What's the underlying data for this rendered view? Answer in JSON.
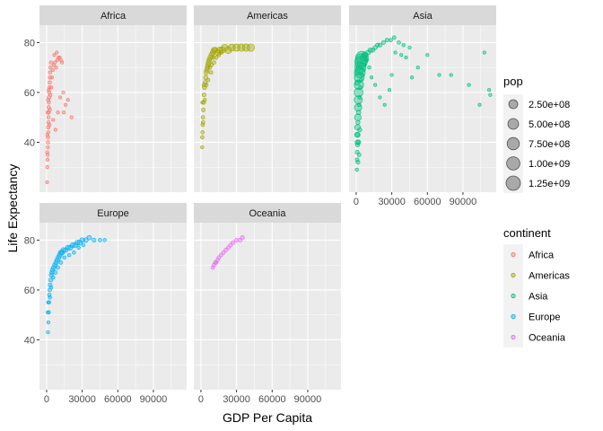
{
  "chart_data": {
    "type": "scatter",
    "facet_by": "continent",
    "xlabel": "GDP Per Capita",
    "ylabel": "Life Expectancy",
    "xlim": [
      -6000,
      118000
    ],
    "ylim": [
      20,
      87
    ],
    "x_ticks": [
      0,
      30000,
      60000,
      90000
    ],
    "x_tick_labels": [
      "0",
      "30000",
      "60000",
      "90000"
    ],
    "y_ticks": [
      40,
      60,
      80
    ],
    "y_tick_labels": [
      "40",
      "60",
      "80"
    ],
    "grid": true,
    "legend_position": "right",
    "size_legend": {
      "title": "pop",
      "values": [
        250000000,
        500000000,
        750000000,
        1000000000,
        1250000000
      ],
      "labels": [
        "2.50e+08",
        "5.00e+08",
        "7.50e+08",
        "1.00e+09",
        "1.25e+09"
      ]
    },
    "color_legend": {
      "title": "continent",
      "entries": [
        {
          "name": "Africa",
          "color": "#F8766D"
        },
        {
          "name": "Americas",
          "color": "#A3A500"
        },
        {
          "name": "Asia",
          "color": "#00BF7D"
        },
        {
          "name": "Europe",
          "color": "#00B0F6"
        },
        {
          "name": "Oceania",
          "color": "#E76BF3"
        }
      ]
    },
    "facets": [
      {
        "name": "Africa",
        "color": "#F8766D",
        "points": [
          [
            400,
            24,
            2
          ],
          [
            600,
            30,
            4
          ],
          [
            800,
            33,
            5
          ],
          [
            900,
            35,
            6
          ],
          [
            1000,
            38,
            4
          ],
          [
            1100,
            40,
            8
          ],
          [
            1200,
            42,
            6
          ],
          [
            1300,
            44,
            5
          ],
          [
            1400,
            46,
            10
          ],
          [
            1500,
            48,
            8
          ],
          [
            1600,
            50,
            6
          ],
          [
            1700,
            52,
            12
          ],
          [
            1800,
            54,
            9
          ],
          [
            1900,
            56,
            7
          ],
          [
            2000,
            58,
            14
          ],
          [
            2200,
            60,
            10
          ],
          [
            2400,
            62,
            8
          ],
          [
            2600,
            64,
            6
          ],
          [
            2800,
            66,
            5
          ],
          [
            3000,
            68,
            4
          ],
          [
            3300,
            70,
            4
          ],
          [
            3600,
            72,
            3
          ],
          [
            500,
            36,
            3
          ],
          [
            700,
            43,
            5
          ],
          [
            1000,
            52,
            9
          ],
          [
            1300,
            57,
            6
          ],
          [
            1700,
            61,
            4
          ],
          [
            2300,
            47,
            11
          ],
          [
            2700,
            53,
            7
          ],
          [
            3200,
            59,
            5
          ],
          [
            4000,
            62,
            3
          ],
          [
            4500,
            66,
            2
          ],
          [
            5200,
            69,
            2
          ],
          [
            6000,
            71,
            2
          ],
          [
            7000,
            72,
            1
          ],
          [
            8000,
            70,
            1
          ],
          [
            9000,
            73,
            1
          ],
          [
            10000,
            74,
            1
          ],
          [
            11000,
            74,
            1
          ],
          [
            12000,
            73,
            1
          ],
          [
            13000,
            72,
            1
          ],
          [
            14000,
            60,
            1
          ],
          [
            16000,
            55,
            1
          ],
          [
            18000,
            57,
            1
          ],
          [
            21000,
            50,
            1
          ],
          [
            5500,
            49,
            1
          ],
          [
            7500,
            45,
            1
          ],
          [
            9500,
            52,
            1
          ],
          [
            11500,
            58,
            1
          ],
          [
            14500,
            52,
            1
          ],
          [
            6500,
            75,
            1
          ],
          [
            8500,
            76,
            1
          ]
        ]
      },
      {
        "name": "Americas",
        "color": "#A3A500",
        "points": [
          [
            1000,
            38,
            3
          ],
          [
            1100,
            42,
            6
          ],
          [
            1300,
            44,
            8
          ],
          [
            1500,
            47,
            10
          ],
          [
            1700,
            50,
            12
          ],
          [
            2000,
            53,
            15
          ],
          [
            2300,
            56,
            18
          ],
          [
            2600,
            59,
            20
          ],
          [
            3000,
            62,
            25
          ],
          [
            3500,
            64,
            30
          ],
          [
            4000,
            66,
            35
          ],
          [
            4500,
            68,
            40
          ],
          [
            5000,
            69,
            45
          ],
          [
            5500,
            70,
            50
          ],
          [
            6000,
            71,
            55
          ],
          [
            6500,
            72,
            60
          ],
          [
            7000,
            73,
            65
          ],
          [
            8000,
            74,
            70
          ],
          [
            9000,
            75,
            80
          ],
          [
            10000,
            76,
            90
          ],
          [
            11000,
            77,
            100
          ],
          [
            12000,
            77,
            110
          ],
          [
            14000,
            76,
            130
          ],
          [
            16000,
            77,
            160
          ],
          [
            18000,
            77,
            180
          ],
          [
            20000,
            78,
            200
          ],
          [
            23000,
            77,
            220
          ],
          [
            26000,
            78,
            250
          ],
          [
            30000,
            78,
            270
          ],
          [
            34000,
            78,
            290
          ],
          [
            38000,
            78,
            300
          ],
          [
            42000,
            78,
            310
          ],
          [
            1200,
            56,
            4
          ],
          [
            1800,
            48,
            9
          ],
          [
            2500,
            63,
            11
          ],
          [
            3200,
            57,
            7
          ],
          [
            4500,
            63,
            9
          ],
          [
            6000,
            65,
            10
          ],
          [
            7500,
            70,
            12
          ],
          [
            9000,
            71,
            11
          ],
          [
            11000,
            72,
            10
          ],
          [
            13000,
            74,
            9
          ],
          [
            15000,
            75,
            12
          ],
          [
            17000,
            76,
            14
          ],
          [
            8500,
            68,
            10
          ],
          [
            10500,
            74,
            8
          ]
        ]
      },
      {
        "name": "Asia",
        "color": "#00BF7D",
        "points": [
          [
            600,
            29,
            8
          ],
          [
            800,
            33,
            15
          ],
          [
            900,
            36,
            20
          ],
          [
            1000,
            40,
            50
          ],
          [
            1100,
            43,
            80
          ],
          [
            1200,
            46,
            120
          ],
          [
            1400,
            50,
            200
          ],
          [
            1600,
            54,
            300
          ],
          [
            1800,
            57,
            400
          ],
          [
            2000,
            60,
            500
          ],
          [
            2300,
            63,
            600
          ],
          [
            2600,
            66,
            700
          ],
          [
            3000,
            68,
            900
          ],
          [
            3500,
            70,
            1000
          ],
          [
            4000,
            72,
            1200
          ],
          [
            4500,
            73,
            1300
          ],
          [
            5000,
            74,
            1300
          ],
          [
            6000,
            74,
            150
          ],
          [
            7000,
            75,
            80
          ],
          [
            8000,
            75,
            60
          ],
          [
            10000,
            76,
            50
          ],
          [
            12000,
            77,
            40
          ],
          [
            14000,
            77,
            30
          ],
          [
            16000,
            78,
            25
          ],
          [
            18000,
            79,
            20
          ],
          [
            20000,
            79,
            20
          ],
          [
            23000,
            80,
            15
          ],
          [
            26000,
            81,
            15
          ],
          [
            29000,
            81,
            10
          ],
          [
            32000,
            82,
            10
          ],
          [
            36000,
            80,
            8
          ],
          [
            40000,
            79,
            5
          ],
          [
            45000,
            78,
            5
          ],
          [
            800,
            43,
            60
          ],
          [
            1200,
            39,
            30
          ],
          [
            1500,
            48,
            25
          ],
          [
            2000,
            52,
            40
          ],
          [
            2500,
            55,
            15
          ],
          [
            3000,
            58,
            12
          ],
          [
            3500,
            62,
            10
          ],
          [
            4000,
            65,
            8
          ],
          [
            5000,
            67,
            6
          ],
          [
            6000,
            69,
            5
          ],
          [
            7000,
            71,
            4
          ],
          [
            9000,
            73,
            4
          ],
          [
            11000,
            70,
            3
          ],
          [
            13000,
            66,
            2
          ],
          [
            16000,
            63,
            2
          ],
          [
            20000,
            58,
            2
          ],
          [
            24000,
            55,
            2
          ],
          [
            28000,
            61,
            2
          ],
          [
            30000,
            67,
            2
          ],
          [
            33000,
            76,
            2
          ],
          [
            38000,
            75,
            2
          ],
          [
            42000,
            74,
            2
          ],
          [
            47000,
            66,
            1
          ],
          [
            52000,
            70,
            1
          ],
          [
            60000,
            75,
            1
          ],
          [
            70000,
            67,
            1
          ],
          [
            80000,
            67,
            1
          ],
          [
            95000,
            63,
            1
          ],
          [
            108000,
            76,
            1
          ],
          [
            112000,
            61,
            1
          ],
          [
            104000,
            55,
            1
          ],
          [
            113000,
            59,
            1
          ],
          [
            1000,
            64,
            80
          ],
          [
            1500,
            68,
            90
          ],
          [
            2500,
            70,
            100
          ],
          [
            3000,
            45,
            30
          ],
          [
            2000,
            40,
            40
          ],
          [
            1500,
            32,
            20
          ],
          [
            2500,
            35,
            15
          ]
        ]
      },
      {
        "name": "Europe",
        "color": "#00B0F6",
        "points": [
          [
            1200,
            43,
            3
          ],
          [
            1500,
            47,
            5
          ],
          [
            1800,
            51,
            6
          ],
          [
            2000,
            55,
            8
          ],
          [
            2300,
            58,
            10
          ],
          [
            2600,
            60,
            12
          ],
          [
            3000,
            62,
            15
          ],
          [
            3500,
            64,
            20
          ],
          [
            4000,
            66,
            25
          ],
          [
            4500,
            67,
            30
          ],
          [
            5000,
            68,
            35
          ],
          [
            6000,
            69,
            40
          ],
          [
            7000,
            70,
            45
          ],
          [
            8000,
            71,
            50
          ],
          [
            9000,
            72,
            55
          ],
          [
            10000,
            73,
            60
          ],
          [
            11000,
            74,
            60
          ],
          [
            12000,
            75,
            60
          ],
          [
            13000,
            75,
            60
          ],
          [
            14000,
            76,
            60
          ],
          [
            16000,
            76,
            60
          ],
          [
            18000,
            77,
            60
          ],
          [
            20000,
            77,
            60
          ],
          [
            22000,
            78,
            60
          ],
          [
            24000,
            78,
            60
          ],
          [
            26000,
            79,
            60
          ],
          [
            28000,
            79,
            60
          ],
          [
            30000,
            80,
            60
          ],
          [
            33000,
            80,
            50
          ],
          [
            36000,
            81,
            40
          ],
          [
            40000,
            80,
            20
          ],
          [
            45000,
            80,
            10
          ],
          [
            49000,
            80,
            5
          ],
          [
            2800,
            57,
            6
          ],
          [
            3800,
            61,
            8
          ],
          [
            5500,
            65,
            10
          ],
          [
            7500,
            67,
            12
          ],
          [
            9500,
            69,
            10
          ],
          [
            12000,
            71,
            9
          ],
          [
            15000,
            73,
            8
          ],
          [
            19000,
            74,
            7
          ],
          [
            23000,
            75,
            6
          ],
          [
            27000,
            77,
            5
          ],
          [
            31000,
            78,
            4
          ],
          [
            1000,
            51,
            4
          ],
          [
            1500,
            55,
            6
          ]
        ]
      },
      {
        "name": "Oceania",
        "color": "#E76BF3",
        "points": [
          [
            10000,
            69,
            8
          ],
          [
            11000,
            70,
            10
          ],
          [
            12000,
            71,
            9
          ],
          [
            13000,
            71,
            12
          ],
          [
            14000,
            72,
            11
          ],
          [
            15000,
            73,
            10
          ],
          [
            17000,
            74,
            13
          ],
          [
            19000,
            75,
            12
          ],
          [
            21000,
            76,
            15
          ],
          [
            23000,
            77,
            14
          ],
          [
            25000,
            78,
            17
          ],
          [
            27000,
            79,
            16
          ],
          [
            30000,
            80,
            19
          ],
          [
            33000,
            80,
            18
          ],
          [
            35000,
            81,
            20
          ]
        ]
      }
    ]
  }
}
